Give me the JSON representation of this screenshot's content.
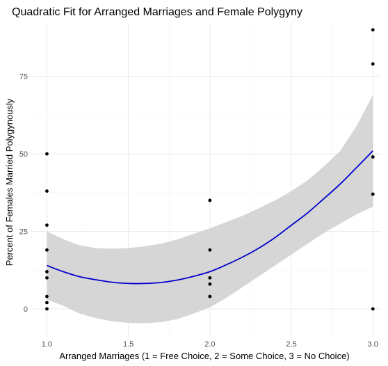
{
  "chart_data": {
    "type": "scatter",
    "title": "Quadratic Fit for Arranged Marriages and Female Polygyny",
    "xlabel": "Arranged Marriages (1 = Free Choice, 2 = Some Choice, 3 = No Choice)",
    "ylabel": "Percent of Females Married Polygynously",
    "xlim": [
      0.9,
      3.05
    ],
    "ylim": [
      -9,
      92
    ],
    "x_ticks": [
      1.0,
      1.5,
      2.0,
      2.5,
      3.0
    ],
    "x_tick_labels": [
      "1.0",
      "1.5",
      "2.0",
      "2.5",
      "3.0"
    ],
    "y_ticks": [
      0,
      25,
      50,
      75
    ],
    "y_tick_labels": [
      "0",
      "25",
      "50",
      "75"
    ],
    "grid": true,
    "legend": "none",
    "points": [
      {
        "x": 1,
        "y": 50
      },
      {
        "x": 1,
        "y": 38
      },
      {
        "x": 1,
        "y": 27
      },
      {
        "x": 1,
        "y": 19
      },
      {
        "x": 1,
        "y": 12
      },
      {
        "x": 1,
        "y": 10
      },
      {
        "x": 1,
        "y": 4
      },
      {
        "x": 1,
        "y": 2
      },
      {
        "x": 1,
        "y": 0
      },
      {
        "x": 2,
        "y": 35
      },
      {
        "x": 2,
        "y": 19
      },
      {
        "x": 2,
        "y": 10
      },
      {
        "x": 2,
        "y": 8
      },
      {
        "x": 2,
        "y": 4
      },
      {
        "x": 3,
        "y": 90
      },
      {
        "x": 3,
        "y": 79
      },
      {
        "x": 3,
        "y": 49
      },
      {
        "x": 3,
        "y": 37
      },
      {
        "x": 3,
        "y": 0
      }
    ],
    "fit": {
      "x": [
        1.0,
        1.1,
        1.2,
        1.3,
        1.4,
        1.5,
        1.6,
        1.7,
        1.8,
        1.9,
        2.0,
        2.1,
        2.2,
        2.3,
        2.4,
        2.5,
        2.6,
        2.7,
        2.8,
        2.9,
        3.0
      ],
      "y": [
        14,
        12,
        10.4,
        9.4,
        8.6,
        8.2,
        8.2,
        8.5,
        9.3,
        10.5,
        12,
        14.2,
        16.7,
        19.6,
        23,
        27,
        31,
        35.6,
        40.3,
        45.6,
        51
      ],
      "lower": [
        3,
        1,
        -1.5,
        -3,
        -4,
        -4.5,
        -4.6,
        -4.3,
        -3.3,
        -1.5,
        0.5,
        3.5,
        7,
        10.5,
        14,
        17.5,
        21,
        24.5,
        27.5,
        30.5,
        33
      ],
      "upper": [
        25,
        22.5,
        20.5,
        19.6,
        19.4,
        19.6,
        20.2,
        21,
        22.4,
        24.2,
        26,
        28,
        30,
        32.5,
        35,
        38,
        41.5,
        46,
        51,
        59,
        69
      ]
    },
    "colors": {
      "fit_line": "#0000cc",
      "ribbon": "#d6d6d6",
      "points": "#000000"
    }
  }
}
